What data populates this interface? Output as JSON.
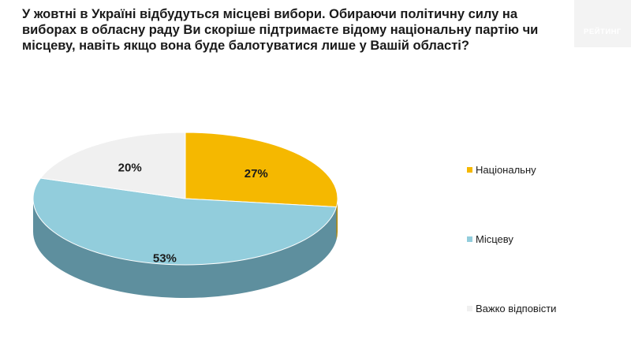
{
  "title": "У жовтні в Україні відбудуться місцеві вибори. Обираючи політичну силу на виборах в обласну раду Ви скоріше підтримаєте відому національну партію чи місцеву, навіть якщо вона буде балотуватися лише у Вашій області?",
  "logo": {
    "text": "РЕЙТИНГ"
  },
  "chart_data": {
    "type": "pie",
    "title": "У жовтні в Україні відбудуться місцеві вибори. Обираючи політичну силу на виборах в обласну раду Ви скоріше підтримаєте відому національну партію чи місцеву, навіть якщо вона буде балотуватися лише у Вашій області?",
    "legend_position": "right",
    "slices": [
      {
        "label": "Національну",
        "value": 27,
        "value_label": "27%",
        "color": "#f5b800",
        "side_color": "#b38600"
      },
      {
        "label": "Місцеву",
        "value": 53,
        "value_label": "53%",
        "color": "#92cddc",
        "side_color": "#5e8f9e"
      },
      {
        "label": "Важко відповісти",
        "value": 20,
        "value_label": "20%",
        "color": "#f0f0f0",
        "side_color": "#bdbdbd"
      }
    ]
  }
}
